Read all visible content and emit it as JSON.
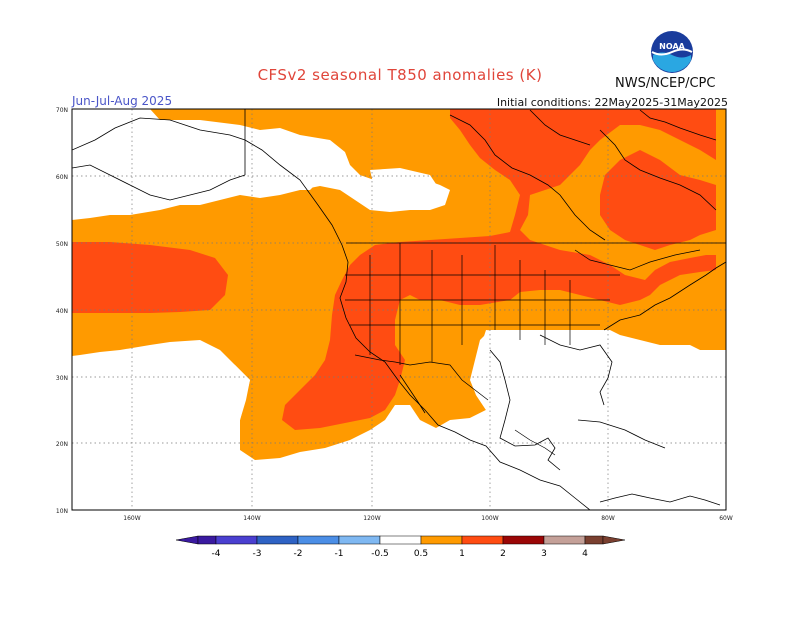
{
  "title": "CFSv2 seasonal T850 anomalies (K)",
  "period": "Jun-Jul-Aug 2025",
  "initial_conditions": "Initial conditions: 22May2025-31May2025",
  "agency": "NWS/NCEP/CPC",
  "logo_text": "NOAA",
  "map": {
    "lat_labels": [
      "70N",
      "60N",
      "50N",
      "40N",
      "30N",
      "20N",
      "10N"
    ],
    "lon_labels": [
      "160W",
      "140W",
      "120W",
      "100W",
      "80W",
      "60W"
    ],
    "grid": true
  },
  "legend": {
    "labels": [
      "-4",
      "-3",
      "-2",
      "-1",
      "-0.5",
      "0.5",
      "1",
      "2",
      "3",
      "4"
    ],
    "colors": {
      "lt_-4": "#3a1aa0",
      "-4_-3": "#4a3fd0",
      "-3_-2": "#2e62c4",
      "-2_-1": "#4b8ee6",
      "-1_-0.5": "#7fb8f2",
      "-0.5_0.5": "#ffffff",
      "0.5_1": "#ff9a00",
      "1_2": "#ff4c12",
      "2_3": "#cc1010",
      "3_4": "#9a0606",
      "gt_4": "#c4a098",
      "extreme": "#7a4030"
    }
  },
  "colors": {
    "anom_0_5_to_1": "#ff9a00",
    "anom_1_to_2": "#ff4c12",
    "land_outline": "#000000",
    "title": "#e0453a",
    "period": "#4a55c8"
  }
}
